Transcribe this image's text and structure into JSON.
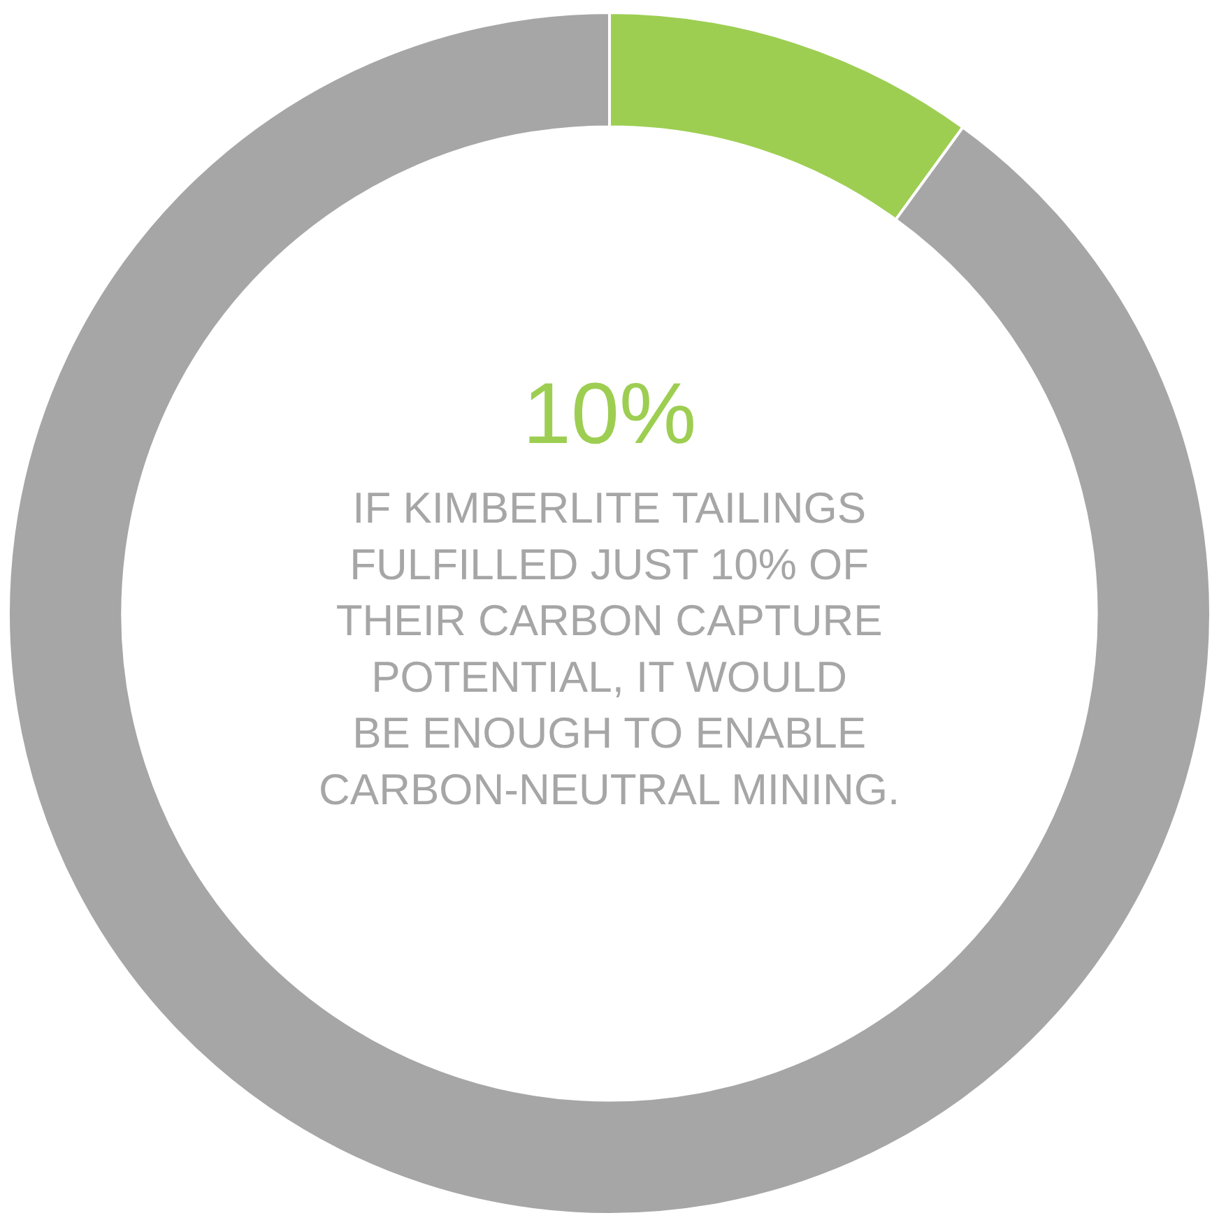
{
  "chart_data": {
    "type": "donut",
    "categories": [
      null,
      null
    ],
    "values": [
      10,
      90
    ],
    "colors": [
      "#9dce52",
      "#a6a6a6"
    ],
    "legend": false,
    "annotations": [
      "10%",
      "IF KIMBERLITE TAILINGS\nFULFILLED JUST 10% OF\nTHEIR CARBON CAPTURE\nPOTENTIAL, IT WOULD\nBE ENOUGH TO ENABLE\nCARBON-NEUTRAL MINING."
    ]
  }
}
